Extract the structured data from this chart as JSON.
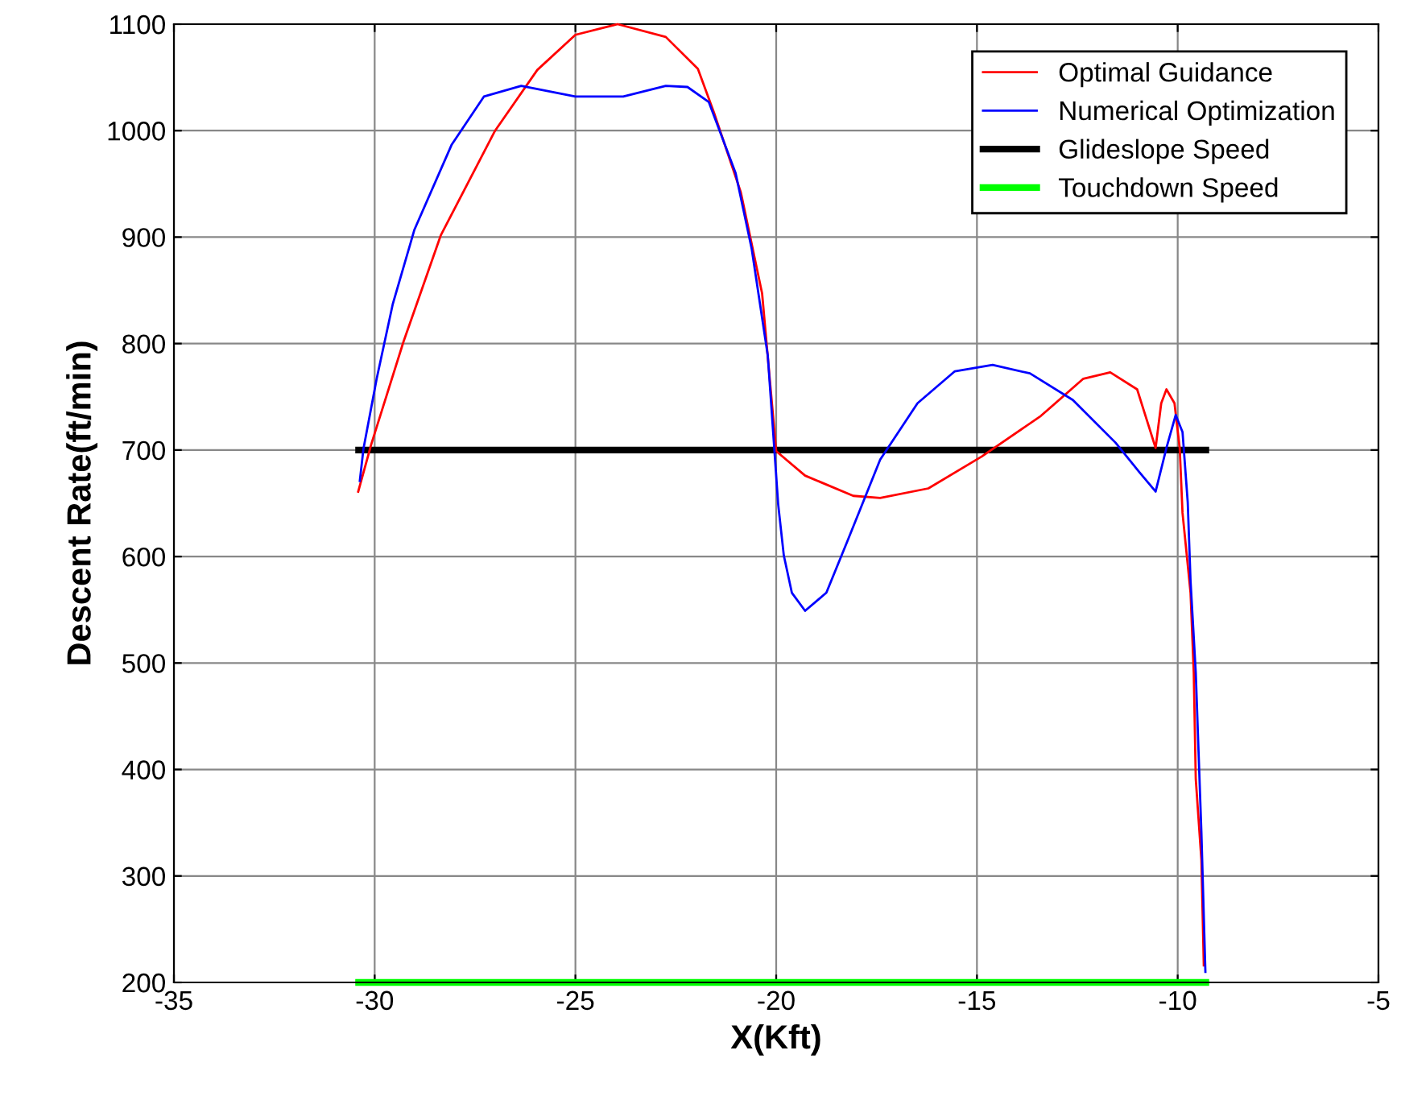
{
  "chart_data": {
    "type": "line",
    "xlabel": "X(Kft)",
    "ylabel": "Descent Rate(ft/min)",
    "xlim": [
      -35,
      -5
    ],
    "xticks": [
      -35,
      -30,
      -25,
      -20,
      -15,
      -10,
      -5
    ],
    "ylim": [
      200,
      1100
    ],
    "yticks": [
      200,
      300,
      400,
      500,
      600,
      700,
      800,
      900,
      1000,
      1100
    ],
    "grid": true,
    "legend": "top right",
    "line_style": "solid",
    "marker": "none",
    "series": [
      {
        "name": "Optimal Guidance",
        "color": "#ff0000",
        "x": [
          -30.41,
          -30.08,
          -29.28,
          -28.35,
          -27.0,
          -25.95,
          -25.0,
          -23.95,
          -22.75,
          -21.95,
          -21.55,
          -20.88,
          -20.35,
          -20.0,
          -19.28,
          -18.08,
          -17.41,
          -16.21,
          -14.88,
          -13.41,
          -12.35,
          -11.68,
          -11.01,
          -10.55,
          -10.41,
          -10.28,
          -10.08,
          -9.95,
          -9.88,
          -9.68,
          -9.6,
          -9.55,
          -9.41,
          -9.35
        ],
        "values": [
          661,
          706,
          802,
          902,
          1000,
          1057,
          1090,
          1100,
          1088,
          1058,
          1017,
          942,
          847,
          699,
          676,
          657,
          655,
          664,
          694,
          732,
          767,
          773,
          757,
          702,
          744,
          757,
          744,
          702,
          641,
          566,
          491,
          391,
          315,
          216
        ]
      },
      {
        "name": "Numerical Optimization",
        "color": "#0000ff",
        "x": [
          -30.37,
          -30.28,
          -29.95,
          -29.55,
          -29.01,
          -28.08,
          -27.28,
          -26.35,
          -25.0,
          -23.81,
          -22.75,
          -22.21,
          -21.68,
          -21.01,
          -20.61,
          -20.21,
          -19.95,
          -19.81,
          -19.61,
          -19.28,
          -18.75,
          -18.21,
          -17.41,
          -16.48,
          -15.55,
          -14.61,
          -13.68,
          -12.61,
          -11.55,
          -10.95,
          -10.55,
          -10.28,
          -10.05,
          -9.88,
          -9.75,
          -9.68,
          -9.55,
          -9.48,
          -9.41,
          -9.31
        ],
        "values": [
          671,
          701,
          767,
          837,
          907,
          987,
          1032,
          1042,
          1032,
          1032,
          1042,
          1041,
          1027,
          960,
          889,
          789,
          649,
          601,
          566,
          549,
          566,
          616,
          691,
          744,
          774,
          780,
          772,
          747,
          707,
          679,
          661,
          702,
          733,
          717,
          651,
          577,
          491,
          416,
          341,
          210
        ]
      },
      {
        "name": "Glideslope Speed",
        "color": "#000000",
        "x": [
          -30.4,
          -9.3
        ],
        "values": [
          700,
          700
        ]
      },
      {
        "name": "Touchdown Speed",
        "color": "#00ff00",
        "x": [
          -30.4,
          -9.3
        ],
        "values": [
          200,
          200
        ]
      }
    ]
  }
}
